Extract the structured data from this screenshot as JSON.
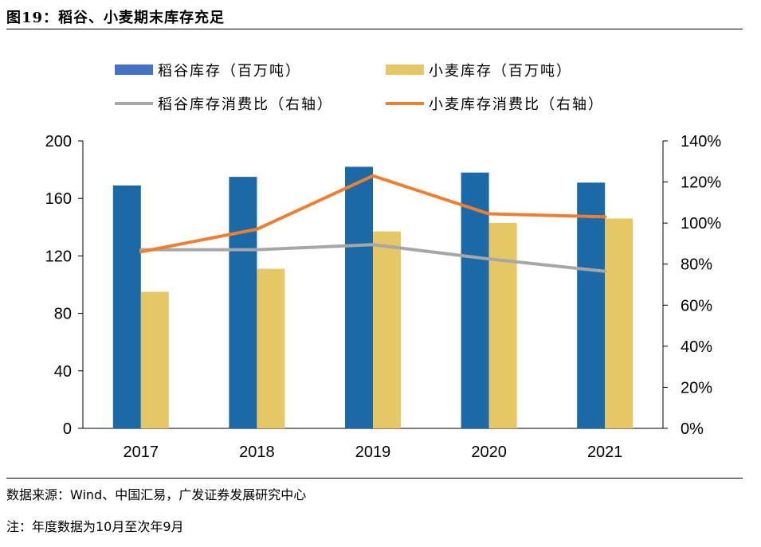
{
  "figure": {
    "title": "图19：稻谷、小麦期末库存充足",
    "source": "数据来源：Wind、中国汇易，广发证券发展研究中心",
    "note": "注：年度数据为10月至次年9月"
  },
  "colors": {
    "rice_inventory": "#1b69a6",
    "rice_inventory_legend": "#4472c4",
    "wheat_inventory": "#e6c766",
    "rice_ratio": "#a9a6a6",
    "wheat_ratio": "#ee7f30"
  },
  "chart_data": {
    "type": "bar",
    "categories": [
      "2017",
      "2018",
      "2019",
      "2020",
      "2021"
    ],
    "series": [
      {
        "name": "稻谷库存（百万吨）",
        "kind": "bar",
        "axis": "left",
        "values": [
          169,
          175,
          182,
          178,
          171
        ]
      },
      {
        "name": "小麦库存（百万吨）",
        "kind": "bar",
        "axis": "left",
        "values": [
          95,
          111,
          137,
          143,
          146
        ]
      },
      {
        "name": "稻谷库存消费比（右轴）",
        "kind": "line",
        "axis": "right",
        "values": [
          0.87,
          0.87,
          0.895,
          0.825,
          0.765
        ]
      },
      {
        "name": "小麦库存消费比（右轴）",
        "kind": "line",
        "axis": "right",
        "values": [
          0.86,
          0.97,
          1.23,
          1.045,
          1.03
        ]
      }
    ],
    "ylim_left": [
      0,
      200
    ],
    "yticks_left": [
      "0",
      "40",
      "80",
      "120",
      "160",
      "200"
    ],
    "ylim_right": [
      0,
      1.4
    ],
    "yticks_right": [
      "0%",
      "20%",
      "40%",
      "60%",
      "80%",
      "100%",
      "120%",
      "140%"
    ],
    "legend_position": "top",
    "grid": false
  }
}
